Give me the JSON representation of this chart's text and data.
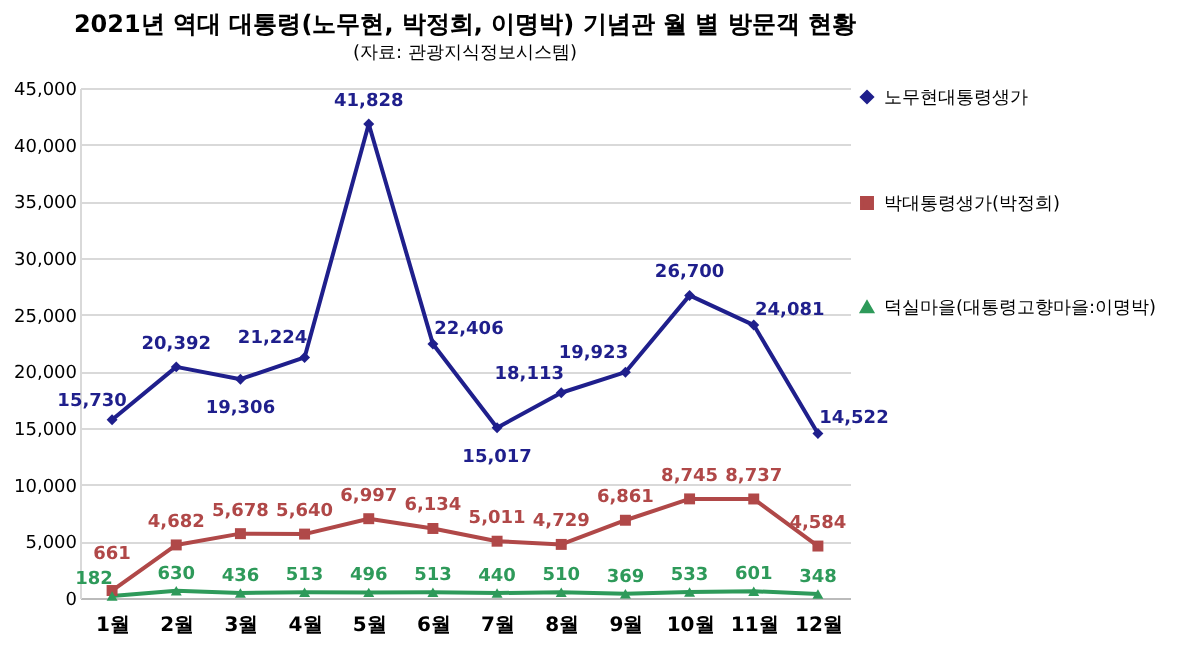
{
  "chart_data": {
    "type": "line",
    "title": "2021년 역대 대통령(노무현, 박정희, 이명박) 기념관 월 별 방문객 현황",
    "subtitle": "(자료: 관광지식정보시스템)",
    "categories": [
      "1월",
      "2월",
      "3월",
      "4월",
      "5월",
      "6월",
      "7월",
      "8월",
      "9월",
      "10월",
      "11월",
      "12월"
    ],
    "series": [
      {
        "name": "노무현대통령생가",
        "color": "#1f1f8c",
        "marker": "diamond",
        "values": [
          15730,
          20392,
          19306,
          21224,
          41828,
          22406,
          15017,
          18113,
          19923,
          26700,
          24081,
          14522
        ],
        "value_labels": [
          "15,730",
          "20,392",
          "19,306",
          "21,224",
          "41,828",
          "22,406",
          "15,017",
          "18,113",
          "19,923",
          "26,700",
          "24,081",
          "14,522"
        ]
      },
      {
        "name": "박대통령생가(박정희)",
        "color": "#b04848",
        "marker": "square",
        "values": [
          661,
          4682,
          5678,
          5640,
          6997,
          6134,
          5011,
          4729,
          6861,
          8745,
          8737,
          4584
        ],
        "value_labels": [
          "661",
          "4,682",
          "5,678",
          "5,640",
          "6,997",
          "6,134",
          "5,011",
          "4,729",
          "6,861",
          "8,745",
          "8,737",
          "4,584"
        ]
      },
      {
        "name": "덕실마을(대통령고향마을:이명박)",
        "color": "#2e9a5a",
        "marker": "triangle",
        "values": [
          182,
          630,
          436,
          513,
          496,
          513,
          440,
          510,
          369,
          533,
          601,
          348
        ],
        "value_labels": [
          "182",
          "630",
          "436",
          "513",
          "496",
          "513",
          "440",
          "510",
          "369",
          "533",
          "601",
          "348"
        ]
      }
    ],
    "ylim": [
      0,
      45000
    ],
    "yticks": [
      {
        "value": 0,
        "label": "0"
      },
      {
        "value": 5000,
        "label": "5,000"
      },
      {
        "value": 10000,
        "label": "10,000"
      },
      {
        "value": 15000,
        "label": "15,000"
      },
      {
        "value": 20000,
        "label": "20,000"
      },
      {
        "value": 25000,
        "label": "25,000"
      },
      {
        "value": 30000,
        "label": "30,000"
      },
      {
        "value": 35000,
        "label": "35,000"
      },
      {
        "value": 40000,
        "label": "40,000"
      },
      {
        "value": 45000,
        "label": "45,000"
      }
    ],
    "grid": "y",
    "legend": "right"
  }
}
